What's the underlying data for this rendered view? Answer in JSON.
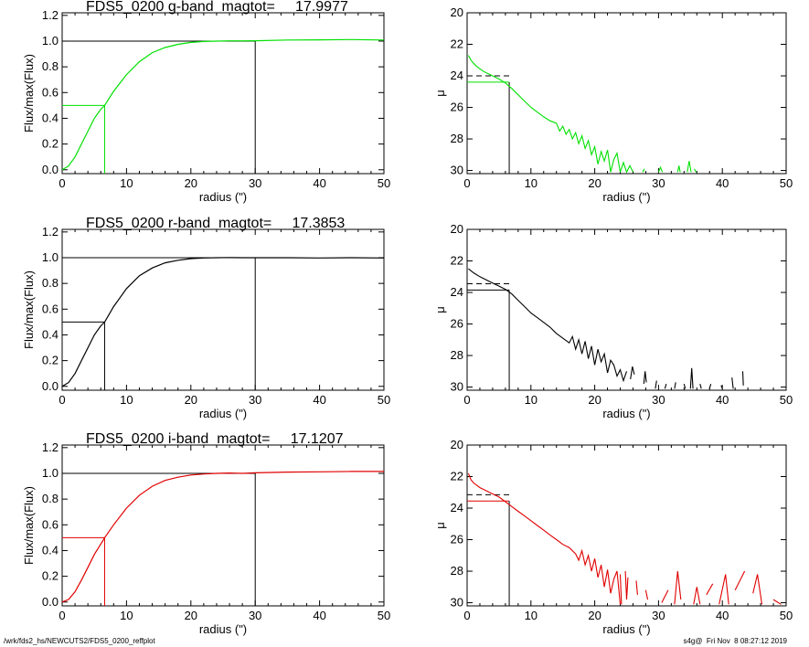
{
  "footer": {
    "path": "/wrk/fds2_hs/NEWCUTS2/FDS5_0200_reffplot",
    "stamp": "s4g@  Fri Nov  8 08:27:12 2019"
  },
  "chart_data": [
    {
      "type": "line",
      "band": "g",
      "title": "FDS5_0200 g-band  magtot=     17.9977",
      "xlabel": "radius (\")",
      "ylabel": "Flux/max(Flux)",
      "xlim": [
        0,
        50
      ],
      "ylim": [
        -0.03,
        1.22
      ],
      "xticks": [
        "0",
        "10",
        "20",
        "30",
        "40",
        "50"
      ],
      "yticks": [
        "0.0",
        "0.2",
        "0.4",
        "0.6",
        "0.8",
        "1.0",
        "1.2"
      ],
      "color": "#00e000",
      "curve_x": [
        0,
        1,
        2,
        3,
        4,
        5,
        6,
        6.6,
        8,
        10,
        12,
        14,
        16,
        18,
        20,
        22,
        24,
        26,
        28,
        30,
        35,
        40,
        45,
        50
      ],
      "curve_y": [
        0.0,
        0.03,
        0.1,
        0.2,
        0.3,
        0.4,
        0.47,
        0.5,
        0.61,
        0.74,
        0.84,
        0.91,
        0.95,
        0.975,
        0.99,
        0.997,
        1.0,
        1.002,
        1.002,
        1.003,
        1.008,
        1.01,
        1.012,
        1.008
      ],
      "half_light_radius": 6.6,
      "total_radius": 30
    },
    {
      "type": "line",
      "band": "g",
      "xlabel": "radius (\")",
      "ylabel": "μ",
      "xlim": [
        0,
        50
      ],
      "ylim": [
        30.2,
        20
      ],
      "xticks": [
        "0",
        "10",
        "20",
        "30",
        "40",
        "50"
      ],
      "yticks": [
        "20",
        "22",
        "24",
        "26",
        "28",
        "30"
      ],
      "color": "#00e000",
      "profile_x": [
        0.2,
        0.6,
        1,
        1.5,
        2,
        2.5,
        3,
        4,
        5,
        6,
        7,
        8,
        9,
        10,
        11,
        12,
        13,
        14,
        14.5,
        15,
        15.5,
        16,
        16.5,
        17,
        17.5,
        18,
        18.5,
        19,
        19.5,
        20,
        20.5,
        21,
        21.5,
        22,
        22.5,
        23,
        23.5,
        24,
        24.5,
        25,
        25.5,
        26
      ],
      "profile_y": [
        22.7,
        23.0,
        23.2,
        23.4,
        23.55,
        23.7,
        23.8,
        24.0,
        24.2,
        24.45,
        24.8,
        25.2,
        25.6,
        26.0,
        26.3,
        26.6,
        26.85,
        27.0,
        27.5,
        27.2,
        27.7,
        27.4,
        28.0,
        27.6,
        28.3,
        27.8,
        28.6,
        28.1,
        29.0,
        28.5,
        29.6,
        28.8,
        29.4,
        28.7,
        30.1,
        29.3,
        28.9,
        30.1,
        29.5,
        30.1,
        29.7,
        30.1
      ],
      "sparse_segments": [
        [
          [
            27.5,
            30.1
          ],
          [
            27.8,
            29.9
          ]
        ],
        [
          [
            30.0,
            30.1
          ],
          [
            30.3,
            29.8
          ],
          [
            30.6,
            30.1
          ]
        ],
        [
          [
            33.0,
            30.1
          ],
          [
            33.2,
            29.7
          ],
          [
            33.4,
            30.1
          ]
        ],
        [
          [
            34.5,
            30.1
          ],
          [
            34.8,
            29.4
          ],
          [
            35.1,
            30.1
          ]
        ],
        [
          [
            35.6,
            29.9
          ],
          [
            35.9,
            30.1
          ]
        ]
      ],
      "mu_half": 24.4,
      "mu_mean": 24.0,
      "half_light_radius": 6.6
    },
    {
      "type": "line",
      "band": "r",
      "title": "FDS5_0200 r-band  magtot=     17.3853",
      "xlabel": "radius (\")",
      "ylabel": "Flux/max(Flux)",
      "xlim": [
        0,
        50
      ],
      "ylim": [
        -0.03,
        1.22
      ],
      "xticks": [
        "0",
        "10",
        "20",
        "30",
        "40",
        "50"
      ],
      "yticks": [
        "0.0",
        "0.2",
        "0.4",
        "0.6",
        "0.8",
        "1.0",
        "1.2"
      ],
      "color": "#000000",
      "curve_x": [
        0,
        1,
        2,
        3,
        4,
        5,
        6,
        6.6,
        8,
        10,
        12,
        14,
        16,
        18,
        20,
        22,
        24,
        26,
        28,
        30,
        35,
        40,
        45,
        50
      ],
      "curve_y": [
        0.0,
        0.03,
        0.1,
        0.2,
        0.3,
        0.4,
        0.47,
        0.5,
        0.62,
        0.76,
        0.86,
        0.92,
        0.96,
        0.98,
        0.993,
        0.998,
        1.0,
        1.001,
        1.0,
        1.0,
        1.0,
        0.998,
        1.0,
        0.998
      ],
      "half_light_radius": 6.6,
      "total_radius": 30
    },
    {
      "type": "line",
      "band": "r",
      "xlabel": "radius (\")",
      "ylabel": "μ",
      "xlim": [
        0,
        50
      ],
      "ylim": [
        30.2,
        20
      ],
      "xticks": [
        "0",
        "10",
        "20",
        "30",
        "40",
        "50"
      ],
      "yticks": [
        "20",
        "22",
        "24",
        "26",
        "28",
        "30"
      ],
      "color": "#000000",
      "profile_x": [
        0.2,
        1,
        2,
        3,
        4,
        5,
        6,
        7,
        8,
        9,
        10,
        11,
        12,
        13,
        14,
        15,
        16,
        16.5,
        17,
        17.5,
        18,
        18.5,
        19,
        19.5,
        20,
        20.5,
        21,
        21.5,
        22,
        22.5,
        23,
        23.5,
        24,
        24.5,
        25
      ],
      "profile_y": [
        22.5,
        22.75,
        23.0,
        23.2,
        23.4,
        23.6,
        23.8,
        24.1,
        24.5,
        24.9,
        25.3,
        25.6,
        25.9,
        26.2,
        26.6,
        26.9,
        27.2,
        26.8,
        27.6,
        27.0,
        27.9,
        27.1,
        28.2,
        27.4,
        28.6,
        27.6,
        28.4,
        27.9,
        29.1,
        28.3,
        28.6,
        29.3,
        28.9,
        29.6,
        29.0
      ],
      "sparse_segments": [
        [
          [
            25.6,
            29.5
          ],
          [
            25.9,
            28.7
          ],
          [
            26.2,
            29.2
          ]
        ],
        [
          [
            27.7,
            29.8
          ],
          [
            27.9,
            29.0
          ],
          [
            28.1,
            29.7
          ]
        ],
        [
          [
            29.5,
            30.1
          ],
          [
            29.7,
            29.6
          ]
        ],
        [
          [
            31.0,
            30.1
          ],
          [
            31.2,
            29.8
          ]
        ],
        [
          [
            32.5,
            30.1
          ],
          [
            32.7,
            29.7
          ]
        ],
        [
          [
            34.0,
            29.8
          ],
          [
            34.2,
            30.1
          ]
        ],
        [
          [
            35.0,
            30.1
          ],
          [
            35.2,
            28.8
          ],
          [
            35.4,
            30.1
          ]
        ],
        [
          [
            36.5,
            29.8
          ],
          [
            36.7,
            30.1
          ]
        ],
        [
          [
            38.0,
            30.1
          ],
          [
            38.2,
            29.8
          ]
        ],
        [
          [
            39.8,
            29.9
          ],
          [
            40.0,
            30.1
          ]
        ],
        [
          [
            41.5,
            29.4
          ],
          [
            41.7,
            30.1
          ]
        ],
        [
          [
            43.2,
            29.0
          ],
          [
            43.3,
            29.9
          ]
        ]
      ],
      "mu_half": 23.85,
      "mu_mean": 23.45,
      "half_light_radius": 6.6
    },
    {
      "type": "line",
      "band": "i",
      "title": "FDS5_0200 i-band  magtot=     17.1207",
      "xlabel": "radius (\")",
      "ylabel": "Flux/max(Flux)",
      "xlim": [
        0,
        50
      ],
      "ylim": [
        -0.03,
        1.22
      ],
      "xticks": [
        "0",
        "10",
        "20",
        "30",
        "40",
        "50"
      ],
      "yticks": [
        "0.0",
        "0.2",
        "0.4",
        "0.6",
        "0.8",
        "1.0",
        "1.2"
      ],
      "color": "#e00000",
      "curve_x": [
        0,
        1,
        2,
        3,
        4,
        5,
        6,
        6.6,
        8,
        10,
        12,
        14,
        16,
        18,
        20,
        22,
        24,
        26,
        28,
        30,
        35,
        40,
        45,
        50
      ],
      "curve_y": [
        0.0,
        0.02,
        0.08,
        0.17,
        0.27,
        0.37,
        0.45,
        0.5,
        0.6,
        0.73,
        0.83,
        0.9,
        0.945,
        0.97,
        0.987,
        0.995,
        1.0,
        1.003,
        1.0,
        1.004,
        1.01,
        1.012,
        1.015,
        1.015
      ],
      "half_light_radius": 6.6,
      "total_radius": 30
    },
    {
      "type": "line",
      "band": "i",
      "xlabel": "radius (\")",
      "ylabel": "μ",
      "xlim": [
        0,
        50
      ],
      "ylim": [
        30.2,
        20
      ],
      "xticks": [
        "0",
        "10",
        "20",
        "30",
        "40",
        "50"
      ],
      "yticks": [
        "20",
        "22",
        "24",
        "26",
        "28",
        "30"
      ],
      "color": "#e00000",
      "profile_x": [
        0.2,
        0.6,
        1,
        2,
        3,
        4,
        5,
        6,
        7,
        8,
        9,
        10,
        11,
        12,
        13,
        14,
        15,
        16,
        17,
        17.5,
        18,
        18.5,
        19,
        19.5,
        20,
        20.5,
        21,
        21.5,
        22,
        22.5,
        23,
        23.5,
        24
      ],
      "profile_y": [
        21.8,
        22.2,
        22.4,
        22.7,
        22.9,
        23.1,
        23.3,
        23.6,
        23.9,
        24.2,
        24.5,
        24.8,
        25.1,
        25.4,
        25.7,
        26.0,
        26.3,
        26.5,
        26.9,
        27.3,
        26.7,
        27.6,
        27.0,
        28.0,
        27.2,
        28.4,
        27.6,
        29.0,
        27.9,
        29.4,
        28.5,
        28.0,
        30.1
      ],
      "sparse_segments": [
        [
          [
            24.0,
            28.2
          ],
          [
            24.2,
            30.1
          ]
        ],
        [
          [
            24.8,
            28.0
          ],
          [
            25.0,
            29.8
          ],
          [
            25.2,
            28.4
          ]
        ],
        [
          [
            26.5,
            28.6
          ],
          [
            26.7,
            29.5
          ]
        ],
        [
          [
            28.0,
            29.2
          ],
          [
            28.3,
            29.8
          ]
        ],
        [
          [
            30.5,
            30.0
          ],
          [
            31.5,
            29.2
          ]
        ],
        [
          [
            32.5,
            30.1
          ],
          [
            33.0,
            28.0
          ],
          [
            33.5,
            29.8
          ]
        ],
        [
          [
            35.5,
            30.1
          ],
          [
            36.0,
            29.0
          ],
          [
            36.5,
            30.1
          ]
        ],
        [
          [
            37.5,
            29.5
          ],
          [
            38.5,
            28.8
          ]
        ],
        [
          [
            39.5,
            30.1
          ],
          [
            40.5,
            28.2
          ],
          [
            41.0,
            30.1
          ]
        ],
        [
          [
            42.0,
            29.2
          ],
          [
            43.5,
            28.0
          ]
        ],
        [
          [
            44.8,
            29.4
          ],
          [
            45.5,
            28.2
          ],
          [
            46.2,
            30.1
          ]
        ],
        [
          [
            48.0,
            29.8
          ],
          [
            49.2,
            30.1
          ]
        ]
      ],
      "mu_half": 23.55,
      "mu_mean": 23.15,
      "half_light_radius": 6.6
    }
  ]
}
